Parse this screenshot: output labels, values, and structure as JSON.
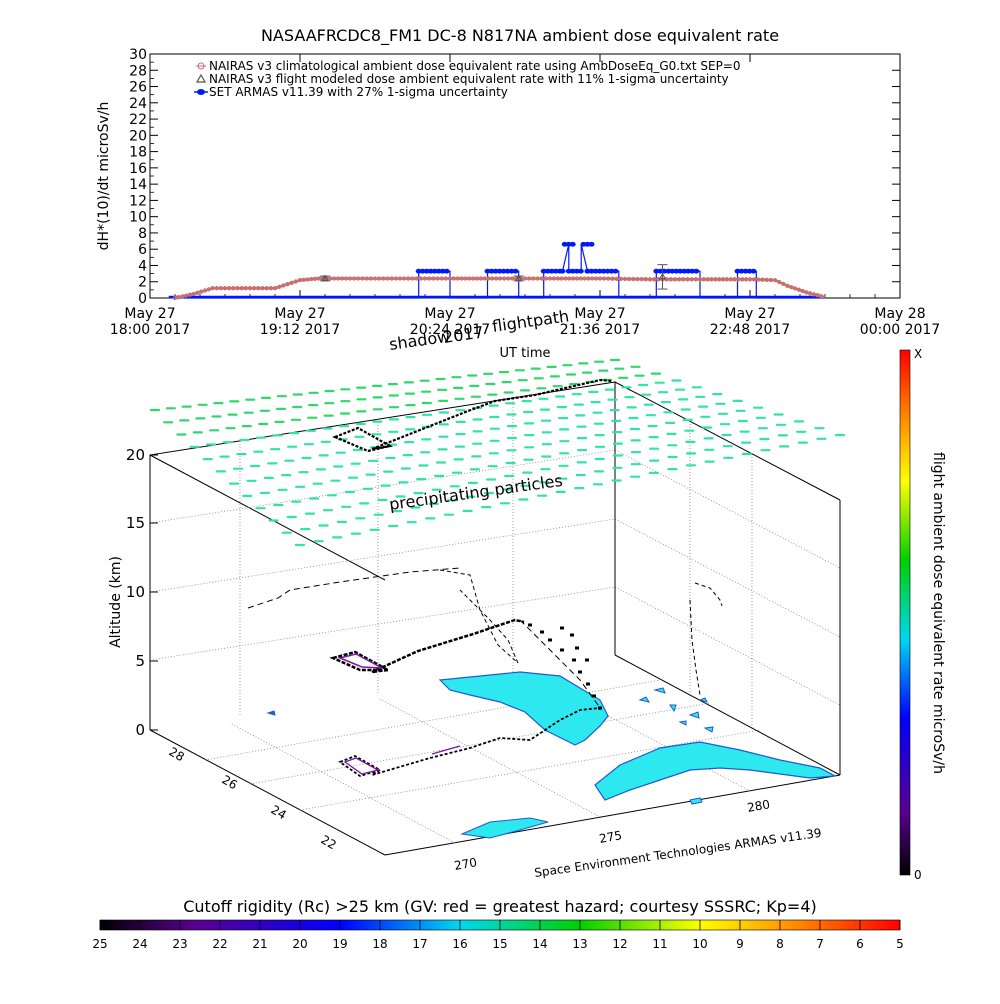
{
  "title": "NASAAFRCDC8_FM1 DC-8    N817NA ambient dose equivalent rate",
  "colors": {
    "nairas_clim": "#c87070",
    "nairas_model": "#555555",
    "armas": "#0018ff",
    "particles": "#30e3a6",
    "particles_high": "#2fd86a",
    "land": "#2ee8f0",
    "coast": "#1e5bd0",
    "track": "#000000",
    "track_shadow": "#7a1aa0"
  },
  "chart_data": [
    {
      "type": "line",
      "ylabel": "dH*(10)/dt microSv/h",
      "xlabel": "UT time",
      "ylim": [
        0,
        30
      ],
      "yticks": [
        "0",
        "2",
        "4",
        "6",
        "8",
        "10",
        "12",
        "14",
        "16",
        "18",
        "20",
        "22",
        "24",
        "26",
        "28",
        "30"
      ],
      "xlim_hours": [
        18.0,
        24.0
      ],
      "xticks": [
        {
          "h": 18.0,
          "l1": "May 27",
          "l2": "18:00 2017"
        },
        {
          "h": 19.2,
          "l1": "May 27",
          "l2": "19:12 2017"
        },
        {
          "h": 20.4,
          "l1": "May 27",
          "l2": "20:24 2017"
        },
        {
          "h": 21.6,
          "l1": "May 27",
          "l2": "21:36 2017"
        },
        {
          "h": 22.8,
          "l1": "May 27",
          "l2": "22:48 2017"
        },
        {
          "h": 24.0,
          "l1": "May 28",
          "l2": "00:00 2017"
        }
      ],
      "legend": [
        {
          "label": "NAIRAS v3 climatological ambient dose equivalent rate using AmbDoseEq_G0.txt SEP=0",
          "marker": "circle",
          "color": "#c87070"
        },
        {
          "label": "NAIRAS v3 flight modeled dose ambient equivalent rate with 11% 1-sigma uncertainty",
          "marker": "triangle",
          "color": "#555555"
        },
        {
          "label": "SET ARMAS v11.39 with 27% 1-sigma uncertainty",
          "marker": "filled-circle",
          "color": "#0018ff"
        }
      ],
      "legend_placement": "top-left",
      "series": [
        {
          "name": "NAIRAS v3 climatological ambient dose equivalent rate using AmbDoseEq_G0.txt SEP=0",
          "x": [
            18.2,
            18.35,
            18.5,
            18.8,
            19.0,
            19.2,
            19.35,
            19.6,
            20.0,
            20.4,
            20.8,
            21.2,
            21.6,
            22.0,
            22.4,
            22.8,
            23.0,
            23.1,
            23.25,
            23.4
          ],
          "y": [
            0,
            0.5,
            1.2,
            1.2,
            1.2,
            2.2,
            2.4,
            2.4,
            2.4,
            2.4,
            2.4,
            2.4,
            2.4,
            2.3,
            2.3,
            2.3,
            2.2,
            1.5,
            0.7,
            0.1
          ]
        },
        {
          "name": "NAIRAS v3 flight modeled dose ambient equivalent rate with 11% 1-sigma uncertainty",
          "x": [
            19.4,
            20.95,
            22.1
          ],
          "y": [
            2.4,
            2.4,
            2.6
          ],
          "err": [
            0.3,
            0.3,
            1.5
          ]
        },
        {
          "name": "SET ARMAS v11.39 with 27% 1-sigma uncertainty",
          "x": [
            18.2,
            20.15,
            20.15,
            20.4,
            20.4,
            20.7,
            20.7,
            20.95,
            20.95,
            21.15,
            21.15,
            21.3,
            21.3,
            21.35,
            21.35,
            21.45,
            21.45,
            21.5,
            21.5,
            21.75,
            21.75,
            22.05,
            22.05,
            22.4,
            22.4,
            22.7,
            22.7,
            22.85,
            22.85,
            23.1,
            23.1,
            23.4
          ],
          "y": [
            0,
            0,
            3.3,
            3.3,
            0,
            0,
            3.3,
            3.3,
            0,
            0,
            3.3,
            3.3,
            3.3,
            6.6,
            3.3,
            3.3,
            6.6,
            3.3,
            3.3,
            3.3,
            0,
            0,
            3.3,
            3.3,
            0,
            0,
            3.3,
            3.3,
            0,
            0,
            0,
            0
          ]
        }
      ]
    },
    {
      "type": "scatter",
      "zlabel": "Altitude (km)",
      "zticks": [
        "0",
        "5",
        "10",
        "15",
        "20"
      ],
      "yticks": [
        "22",
        "24",
        "26",
        "28"
      ],
      "xticks": [
        "270",
        "275",
        "280"
      ],
      "annotations": [
        "shadow",
        "flightpath",
        "precipitating particles"
      ],
      "shadow_prefix": "shadow",
      "shadow_overlap": "2017",
      "credit": "Space Environment Technologies ARMAS v11.39"
    },
    {
      "type": "heatmap",
      "name": "colorbar-vertical",
      "label": "flight ambient dose equivalent rate microSv/h",
      "top_label": "X",
      "bottom_label": "0"
    },
    {
      "type": "heatmap",
      "name": "colorbar-horizontal",
      "label": "Cutoff rigidity (Rc) >25 km (GV: red = greatest hazard; courtesy SSSRC; Kp=4)",
      "ticks": [
        "25",
        "24",
        "23",
        "22",
        "21",
        "20",
        "19",
        "18",
        "17",
        "16",
        "15",
        "14",
        "13",
        "12",
        "11",
        "10",
        "9",
        "8",
        "7",
        "6",
        "5"
      ]
    }
  ]
}
